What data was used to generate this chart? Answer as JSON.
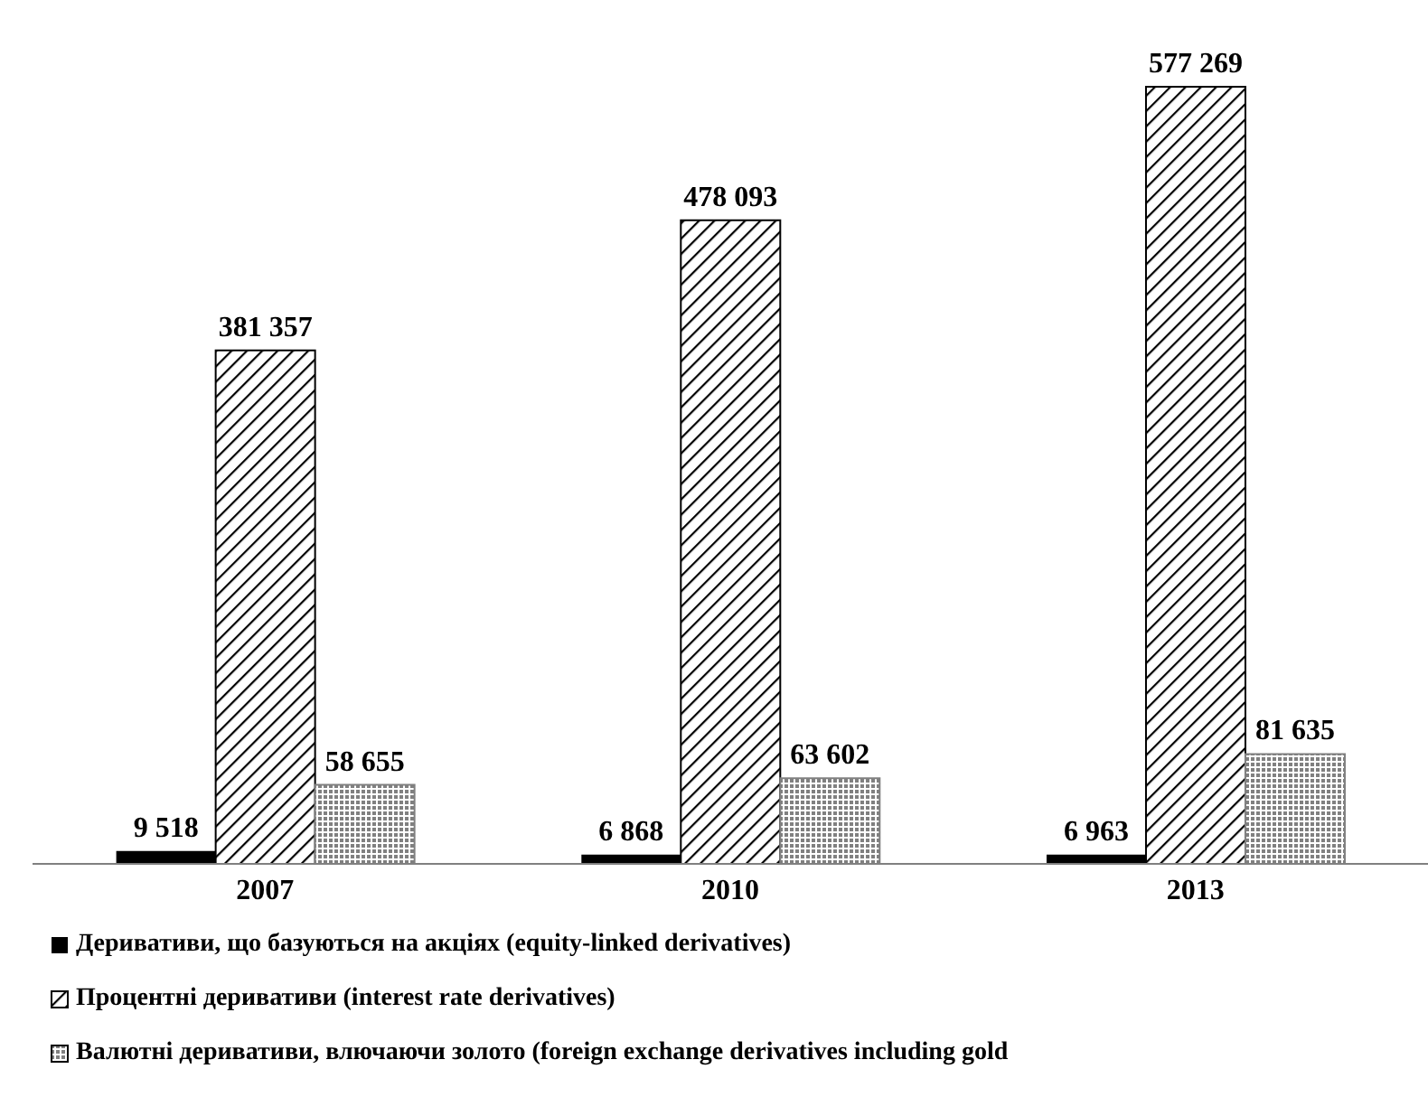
{
  "chart_data": {
    "type": "bar",
    "categories": [
      "2007",
      "2010",
      "2013"
    ],
    "series": [
      {
        "name": "Деривативи, що базуються на акціях (equity-linked derivatives)",
        "color": "#000000",
        "values": [
          9518,
          6868,
          6963
        ]
      },
      {
        "name": "Процентні деривативи (interest rate derivatives)",
        "color": "#000000",
        "values": [
          381357,
          478093,
          577269
        ]
      },
      {
        "name": "Валютні деривативи, влючаючи золото (foreign exchange derivatives including gold",
        "color": "#808080",
        "values": [
          58655,
          63602,
          81635
        ]
      }
    ],
    "data_labels": true,
    "legend": "bottom",
    "grid": false
  }
}
